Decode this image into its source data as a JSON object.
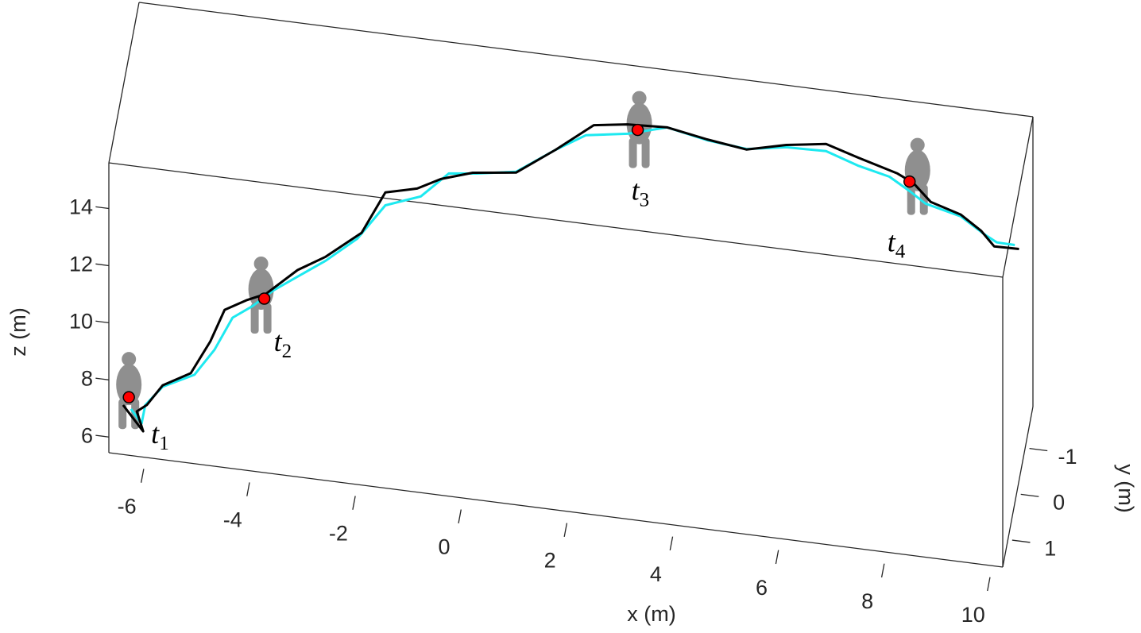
{
  "chart_data": {
    "type": "line3d",
    "xlabel": "x (m)",
    "ylabel": "y (m)",
    "zlabel": "z (m)",
    "xlim": [
      -6.7,
      10.2
    ],
    "ylim": [
      -1.9,
      1.6
    ],
    "zlim": [
      5.45,
      15.6
    ],
    "xticks": [
      -6,
      -4,
      -2,
      0,
      2,
      4,
      6,
      8,
      10
    ],
    "yticks": [
      -1,
      0,
      1
    ],
    "zticks": [
      6,
      8,
      10,
      12,
      14
    ],
    "series": [
      {
        "color": "#1de9f0",
        "x": [
          -6.51,
          -6.31,
          -6.24,
          -5.91,
          -5.31,
          -4.93,
          -4.59,
          -4.21,
          -3.81,
          -2.83,
          -2.23,
          -1.7,
          -1.03,
          -0.5,
          0.02,
          0.77,
          1.52,
          2.09,
          2.88,
          3.63,
          4.38,
          5.13,
          5.88,
          6.63,
          7.23,
          7.83,
          8.21,
          8.51,
          9.18,
          9.63,
          9.86,
          10.2
        ],
        "y": [
          0.2,
          0.2,
          0.2,
          0.2,
          0.2,
          0.2,
          0.2,
          0.2,
          0.2,
          0.2,
          0.2,
          0.2,
          0.2,
          0.2,
          0.2,
          0.2,
          0.2,
          0.2,
          0.2,
          0.2,
          0.2,
          0.2,
          0.2,
          0.2,
          0.2,
          0.2,
          0.2,
          0.2,
          0.2,
          0.2,
          0.2,
          0.2
        ],
        "z": [
          4.78,
          4.32,
          4.98,
          5.7,
          6.26,
          7.23,
          8.43,
          8.93,
          9.58,
          10.84,
          11.76,
          13.05,
          13.52,
          14.45,
          14.57,
          14.81,
          15.76,
          16.4,
          16.64,
          17.04,
          16.77,
          16.64,
          16.88,
          16.92,
          16.56,
          16.31,
          15.9,
          15.53,
          15.24,
          14.71,
          14.49,
          14.48
        ]
      },
      {
        "color": "#000000",
        "x": [
          -6.66,
          -6.28,
          -6.4,
          -6.21,
          -5.91,
          -5.38,
          -5.01,
          -4.74,
          -4.33,
          -3.96,
          -3.36,
          -2.83,
          -2.15,
          -1.7,
          -1.1,
          -0.65,
          -0.05,
          0.77,
          1.52,
          2.24,
          2.88,
          3.63,
          4.38,
          5.13,
          5.88,
          6.63,
          7.23,
          7.98,
          8.28,
          8.61,
          9.18,
          9.56,
          9.81,
          10.28
        ],
        "y": [
          0.2,
          0.2,
          0.2,
          0.2,
          0.2,
          0.2,
          0.2,
          0.2,
          0.2,
          0.2,
          0.2,
          0.2,
          0.2,
          0.2,
          0.2,
          0.2,
          0.2,
          0.2,
          0.2,
          0.2,
          0.2,
          0.2,
          0.2,
          0.2,
          0.2,
          0.2,
          0.2,
          0.2,
          0.2,
          0.2,
          0.2,
          0.2,
          0.2,
          0.2
        ],
        "z": [
          4.88,
          4.05,
          4.72,
          4.99,
          5.75,
          6.3,
          7.5,
          8.67,
          9.1,
          9.41,
          10.39,
          10.98,
          11.98,
          13.5,
          13.78,
          14.22,
          14.58,
          14.78,
          15.76,
          16.79,
          16.97,
          17.04,
          16.8,
          16.62,
          16.96,
          17.17,
          16.84,
          16.46,
          16.2,
          15.61,
          15.3,
          14.83,
          14.34,
          14.36
        ]
      }
    ],
    "markers": {
      "color": "#ff0000",
      "x": [
        -6.55,
        -3.99,
        3.07,
        8.21
      ],
      "y": [
        0.2,
        0.2,
        0.2,
        0.2
      ],
      "z": [
        5.18,
        9.24,
        16.82,
        16.23
      ],
      "labels": [
        "t",
        "t",
        "t",
        "t"
      ],
      "subscripts": [
        "1",
        "2",
        "3",
        "4"
      ]
    }
  }
}
